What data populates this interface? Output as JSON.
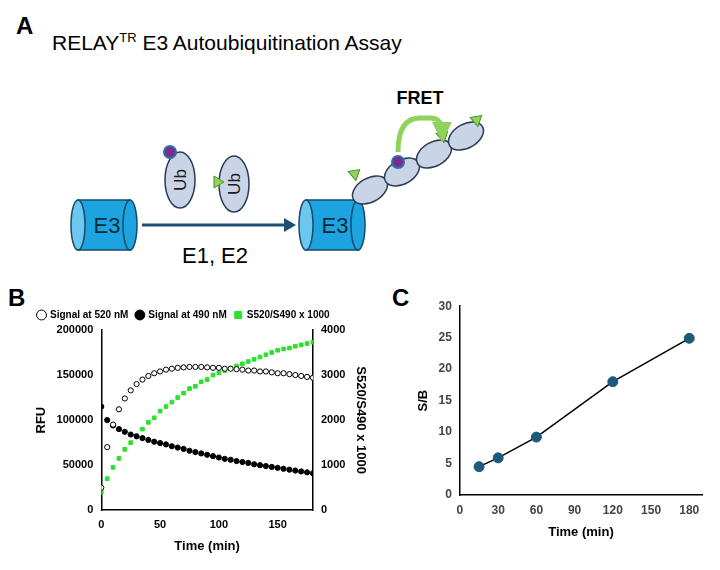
{
  "diagram": {
    "panel": "A",
    "title": "RELAY",
    "title_superscript": "TR",
    "title_rest": " E3 Autoubiquitination Assay",
    "nodes": [
      {
        "label": "E3"
      },
      {
        "label": "Ub"
      },
      {
        "label": "Ub"
      },
      {
        "label": "E3"
      }
    ],
    "arrow_label": "E1, E2",
    "signal": "FRET"
  },
  "chart_data": [
    {
      "panel": "B",
      "type": "line",
      "x_label": "Time (min)",
      "y_label": "RFU",
      "y2_label": "S520/S490 x 1000",
      "x": [
        0,
        5,
        10,
        15,
        20,
        25,
        30,
        35,
        40,
        45,
        50,
        55,
        60,
        65,
        70,
        75,
        80,
        85,
        90,
        95,
        100,
        105,
        110,
        115,
        120,
        125,
        130,
        135,
        140,
        145,
        150,
        155,
        160,
        165,
        170,
        175,
        180
      ],
      "series": [
        {
          "name": "Signal at 520 nM",
          "color": "#000000",
          "marker": "open_circle",
          "line_style": "none",
          "values": [
            25000,
            70000,
            95000,
            112000,
            124000,
            133000,
            140000,
            145000,
            149000,
            152000,
            154000,
            156000,
            157000,
            158000,
            158500,
            159000,
            159000,
            159000,
            158500,
            158000,
            158000,
            157000,
            157000,
            156500,
            156000,
            155000,
            155000,
            154000,
            154000,
            153000,
            152000,
            152000,
            151000,
            150000,
            149000,
            148000,
            147000
          ]
        },
        {
          "name": "Signal at 490 nM",
          "color": "#000000",
          "marker": "circle",
          "line_style": "none",
          "values": [
            115000,
            100000,
            94000,
            90000,
            87000,
            84000,
            82000,
            80000,
            78000,
            76000,
            74500,
            73000,
            71000,
            69500,
            68000,
            66000,
            64500,
            63000,
            61500,
            60000,
            58500,
            57000,
            56000,
            54500,
            53500,
            52500,
            51000,
            50000,
            49000,
            48000,
            47000,
            46000,
            45000,
            44000,
            43000,
            42000,
            41000
          ]
        },
        {
          "name": "S520/S490 x 1000",
          "color": "#2fe02f",
          "marker": "square",
          "line_style": "none",
          "axis": "y2",
          "values": [
            400,
            700,
            950,
            1150,
            1350,
            1500,
            1650,
            1800,
            1950,
            2050,
            2200,
            2300,
            2400,
            2500,
            2600,
            2700,
            2750,
            2850,
            2900,
            3000,
            3050,
            3100,
            3150,
            3200,
            3250,
            3300,
            3350,
            3400,
            3450,
            3500,
            3550,
            3580,
            3600,
            3640,
            3670,
            3700,
            3730
          ]
        }
      ],
      "xlim": [
        0,
        180
      ],
      "xticks": [
        0,
        50,
        100,
        150
      ],
      "ylim": [
        0,
        200000
      ],
      "yticks": [
        0,
        50000,
        100000,
        150000,
        200000
      ],
      "y2lim": [
        0,
        4000
      ],
      "y2ticks": [
        0,
        1000,
        2000,
        3000,
        4000
      ],
      "grid": false,
      "legend": "top"
    },
    {
      "panel": "C",
      "type": "line",
      "x_label": "Time (min)",
      "y_label": "S/B",
      "x": [
        15,
        30,
        60,
        120,
        180
      ],
      "values": [
        4.5,
        5.9,
        9.2,
        18,
        24.9
      ],
      "color": "#1c5a7c",
      "marker": "circle",
      "line_style": "solid",
      "xlim": [
        0,
        190
      ],
      "xticks": [
        0,
        30,
        60,
        90,
        120,
        150,
        180
      ],
      "ylim": [
        0,
        30
      ],
      "yticks": [
        0,
        5,
        10,
        15,
        20,
        25,
        30
      ],
      "grid": false
    }
  ]
}
